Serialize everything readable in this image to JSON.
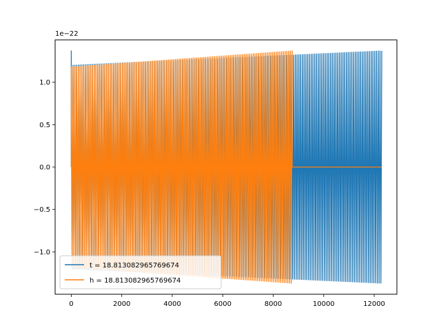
{
  "chart_data": {
    "type": "line",
    "title": "",
    "xlabel": "",
    "ylabel": "",
    "y_offset_label": "1e−22",
    "xlim": [
      -640,
      12900
    ],
    "ylim": [
      -1.5,
      1.5
    ],
    "x_ticks": [
      0,
      2000,
      4000,
      6000,
      8000,
      10000,
      12000
    ],
    "x_tick_labels": [
      "0",
      "2000",
      "4000",
      "6000",
      "8000",
      "10000",
      "12000"
    ],
    "y_ticks": [
      -1.0,
      -0.5,
      0.0,
      0.5,
      1.0
    ],
    "y_tick_labels": [
      "−1.0",
      "−0.5",
      "0.0",
      "0.5",
      "1.0"
    ],
    "grid": false,
    "legend_position": "lower-left",
    "series": [
      {
        "name": "t = 18.813082965769674",
        "color": "#1f77b4",
        "x_range": [
          0,
          12300
        ],
        "amplitude_start": 1.2,
        "amplitude_end": 1.37,
        "cycles": 176,
        "initial_spike": 1.37
      },
      {
        "name": "h = 18.813082965769674",
        "color": "#ff7f0e",
        "x_range": [
          0,
          8750
        ],
        "amplitude_start": 1.18,
        "amplitude_end": 1.37,
        "cycles": 125,
        "flat_after": [
          8750,
          12300
        ],
        "flat_value": 0.0
      }
    ]
  }
}
